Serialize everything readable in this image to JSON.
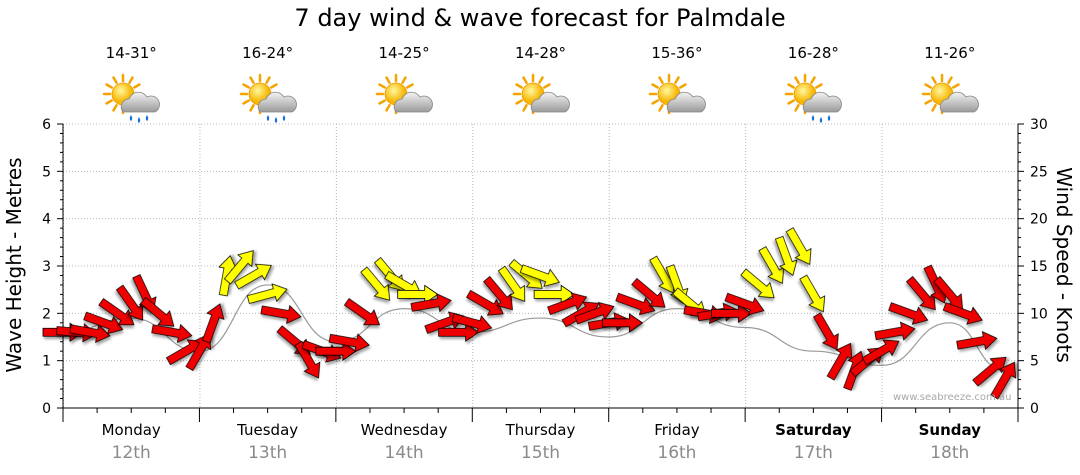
{
  "title": "7 day wind & wave forecast for Palmdale",
  "watermark": "www.seabreeze.com.au",
  "days": [
    {
      "name": "Monday",
      "date": "12th",
      "temp": "14-31°",
      "icon": "sun-cloud-rain-icon",
      "bold": false
    },
    {
      "name": "Tuesday",
      "date": "13th",
      "temp": "16-24°",
      "icon": "sun-cloud-rain-icon",
      "bold": false
    },
    {
      "name": "Wednesday",
      "date": "14th",
      "temp": "14-25°",
      "icon": "sun-cloud-icon",
      "bold": false
    },
    {
      "name": "Thursday",
      "date": "15th",
      "temp": "14-28°",
      "icon": "sun-cloud-icon",
      "bold": false
    },
    {
      "name": "Friday",
      "date": "16th",
      "temp": "15-36°",
      "icon": "sun-cloud-icon",
      "bold": false
    },
    {
      "name": "Saturday",
      "date": "17th",
      "temp": "16-28°",
      "icon": "sun-cloud-rain-icon",
      "bold": true
    },
    {
      "name": "Sunday",
      "date": "18th",
      "temp": "11-26°",
      "icon": "sun-cloud-icon",
      "bold": true
    }
  ],
  "colors": {
    "arrow_red": "#ee0000",
    "arrow_yellow": "#ffff00",
    "grid": "#b8b8b8",
    "date_gray": "#8a8a8a"
  },
  "chart_data": {
    "type": "line",
    "title": "7 day wind & wave forecast for Palmdale",
    "ylabel_left": "Wave Height - Metres",
    "ylabel_right": "Wind Speed - Knots",
    "ylim_left": [
      0,
      6
    ],
    "ylim_right": [
      0,
      30
    ],
    "left_ticks": [
      "0",
      "1",
      "2",
      "3",
      "4",
      "5",
      "6"
    ],
    "right_ticks": [
      "0",
      "5",
      "10",
      "15",
      "20",
      "25",
      "30"
    ],
    "x_unit": "days from Monday 00:00",
    "grid": true,
    "series": [
      {
        "name": "Wind Speed (knots)",
        "x": [
          0.0,
          0.1,
          0.2,
          0.3,
          0.4,
          0.5,
          0.6,
          0.7,
          0.8,
          0.9,
          1.0,
          1.1,
          1.2,
          1.3,
          1.4,
          1.5,
          1.6,
          1.7,
          1.8,
          1.9,
          2.0,
          2.1,
          2.2,
          2.3,
          2.4,
          2.5,
          2.6,
          2.7,
          2.8,
          2.9,
          3.0,
          3.1,
          3.2,
          3.3,
          3.4,
          3.5,
          3.6,
          3.7,
          3.8,
          3.9,
          4.0,
          4.1,
          4.2,
          4.3,
          4.4,
          4.5,
          4.6,
          4.7,
          4.8,
          4.9,
          5.0,
          5.1,
          5.2,
          5.3,
          5.4,
          5.5,
          5.6,
          5.7,
          5.8,
          5.9,
          6.0,
          6.1,
          6.2,
          6.3,
          6.4,
          6.5,
          6.6,
          6.7,
          6.8,
          6.9
        ],
        "values": [
          8,
          8,
          8,
          9,
          10,
          11,
          12,
          10,
          8,
          6,
          6,
          9,
          14,
          15,
          14,
          12,
          10,
          7,
          5,
          6,
          6,
          7,
          10,
          13,
          14,
          13,
          12,
          11,
          9,
          8,
          9,
          11,
          12,
          13,
          14,
          14,
          12,
          11,
          10,
          10,
          9,
          9,
          11,
          12,
          14,
          13,
          11,
          10,
          10,
          10,
          11,
          13,
          15,
          16,
          17,
          12,
          8,
          5,
          4,
          5,
          6,
          8,
          10,
          12,
          13,
          12,
          10,
          7,
          4,
          3
        ],
        "dir_deg": [
          180,
          185,
          190,
          200,
          215,
          235,
          245,
          220,
          190,
          150,
          120,
          110,
          100,
          130,
          150,
          165,
          190,
          220,
          240,
          200,
          180,
          190,
          215,
          230,
          230,
          210,
          180,
          170,
          160,
          180,
          195,
          210,
          230,
          235,
          220,
          200,
          180,
          160,
          150,
          160,
          170,
          180,
          200,
          220,
          240,
          250,
          220,
          190,
          170,
          180,
          200,
          220,
          240,
          250,
          240,
          240,
          240,
          120,
          110,
          140,
          150,
          170,
          200,
          230,
          245,
          230,
          200,
          170,
          140,
          120
        ],
        "colors": [
          "red",
          "red",
          "red",
          "red",
          "red",
          "red",
          "red",
          "red",
          "red",
          "red",
          "red",
          "red",
          "yellow",
          "yellow",
          "yellow",
          "yellow",
          "red",
          "red",
          "red",
          "red",
          "red",
          "red",
          "red",
          "yellow",
          "yellow",
          "yellow",
          "yellow",
          "red",
          "red",
          "red",
          "red",
          "red",
          "red",
          "yellow",
          "yellow",
          "yellow",
          "yellow",
          "red",
          "red",
          "red",
          "red",
          "red",
          "red",
          "red",
          "yellow",
          "yellow",
          "yellow",
          "red",
          "red",
          "red",
          "red",
          "yellow",
          "yellow",
          "yellow",
          "yellow",
          "yellow",
          "red",
          "red",
          "red",
          "red",
          "red",
          "red",
          "red",
          "red",
          "red",
          "red",
          "red",
          "red",
          "red",
          "red"
        ]
      },
      {
        "name": "Wave Height (m)",
        "x": [
          0.0,
          0.5,
          1.0,
          1.5,
          2.0,
          2.5,
          3.0,
          3.5,
          4.0,
          4.5,
          5.0,
          5.5,
          6.0,
          6.5,
          6.9
        ],
        "values": [
          1.6,
          1.9,
          1.2,
          2.6,
          1.4,
          2.1,
          1.6,
          1.9,
          1.5,
          2.1,
          1.7,
          1.2,
          0.9,
          1.8,
          0.8
        ]
      }
    ]
  }
}
